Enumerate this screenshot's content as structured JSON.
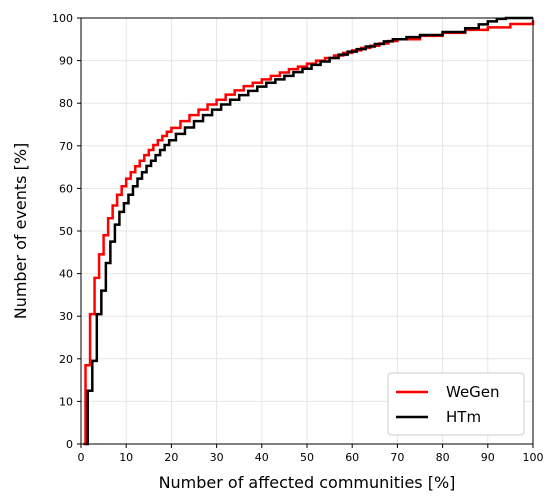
{
  "chart_data": {
    "type": "line",
    "step": true,
    "xlabel": "Number of affected communities [%]",
    "ylabel": "Number of events [%]",
    "xlim": [
      0,
      100
    ],
    "ylim": [
      0,
      100
    ],
    "xticks": [
      0,
      10,
      20,
      30,
      40,
      50,
      60,
      70,
      80,
      90,
      100
    ],
    "yticks": [
      0,
      10,
      20,
      30,
      40,
      50,
      60,
      70,
      80,
      90,
      100
    ],
    "grid": true,
    "legend_position": "bottom-right",
    "series": [
      {
        "name": "WeGen",
        "color": "#ff0000",
        "points": [
          [
            0.5,
            0
          ],
          [
            1,
            18.5
          ],
          [
            2,
            30.5
          ],
          [
            3,
            39
          ],
          [
            4,
            44.5
          ],
          [
            5,
            49
          ],
          [
            6,
            53
          ],
          [
            7,
            56
          ],
          [
            8,
            58.5
          ],
          [
            9,
            60.5
          ],
          [
            10,
            62.3
          ],
          [
            11,
            63.8
          ],
          [
            12,
            65.2
          ],
          [
            13,
            66.5
          ],
          [
            14,
            67.8
          ],
          [
            15,
            69
          ],
          [
            16,
            70.2
          ],
          [
            17,
            71.3
          ],
          [
            18,
            72.3
          ],
          [
            19,
            73.3
          ],
          [
            20,
            74.2
          ],
          [
            22,
            75.8
          ],
          [
            24,
            77.2
          ],
          [
            26,
            78.5
          ],
          [
            28,
            79.7
          ],
          [
            30,
            80.8
          ],
          [
            32,
            82
          ],
          [
            34,
            83
          ],
          [
            36,
            84
          ],
          [
            38,
            84.8
          ],
          [
            40,
            85.6
          ],
          [
            42,
            86.4
          ],
          [
            44,
            87.2
          ],
          [
            46,
            88
          ],
          [
            48,
            88.6
          ],
          [
            50,
            89.3
          ],
          [
            52,
            90
          ],
          [
            54,
            90.6
          ],
          [
            56,
            91.2
          ],
          [
            58,
            91.8
          ],
          [
            60,
            92.4
          ],
          [
            62,
            93
          ],
          [
            64,
            93.5
          ],
          [
            66,
            94
          ],
          [
            68,
            94.6
          ],
          [
            70,
            95
          ],
          [
            75,
            95.8
          ],
          [
            80,
            96.5
          ],
          [
            85,
            97.2
          ],
          [
            90,
            97.8
          ],
          [
            95,
            98.6
          ],
          [
            100,
            99.5
          ]
        ]
      },
      {
        "name": "HTm",
        "color": "#000000",
        "points": [
          [
            1,
            0
          ],
          [
            1.5,
            12.5
          ],
          [
            2.5,
            19.5
          ],
          [
            3.5,
            30.5
          ],
          [
            4.5,
            36
          ],
          [
            5.5,
            42.5
          ],
          [
            6.5,
            47.5
          ],
          [
            7.5,
            51.5
          ],
          [
            8.5,
            54.5
          ],
          [
            9.5,
            56.5
          ],
          [
            10.5,
            58.5
          ],
          [
            11.5,
            60.5
          ],
          [
            12.5,
            62.3
          ],
          [
            13.5,
            63.8
          ],
          [
            14.5,
            65.3
          ],
          [
            15.5,
            66.5
          ],
          [
            16.5,
            67.8
          ],
          [
            17.5,
            69
          ],
          [
            18.5,
            70.2
          ],
          [
            19.5,
            71.3
          ],
          [
            21,
            72.8
          ],
          [
            23,
            74.3
          ],
          [
            25,
            75.8
          ],
          [
            27,
            77.2
          ],
          [
            29,
            78.5
          ],
          [
            31,
            79.7
          ],
          [
            33,
            80.8
          ],
          [
            35,
            81.9
          ],
          [
            37,
            82.9
          ],
          [
            39,
            83.9
          ],
          [
            41,
            84.8
          ],
          [
            43,
            85.6
          ],
          [
            45,
            86.4
          ],
          [
            47,
            87.3
          ],
          [
            49,
            88.1
          ],
          [
            51,
            89
          ],
          [
            53,
            89.8
          ],
          [
            55,
            90.6
          ],
          [
            57,
            91.4
          ],
          [
            59,
            92.1
          ],
          [
            61,
            92.7
          ],
          [
            63,
            93.3
          ],
          [
            65,
            93.9
          ],
          [
            67,
            94.5
          ],
          [
            69,
            95
          ],
          [
            72,
            95.5
          ],
          [
            75,
            96
          ],
          [
            80,
            96.7
          ],
          [
            85,
            97.6
          ],
          [
            88,
            98.5
          ],
          [
            90,
            99.2
          ],
          [
            92,
            99.8
          ],
          [
            94,
            100
          ],
          [
            100,
            100
          ]
        ]
      }
    ]
  }
}
